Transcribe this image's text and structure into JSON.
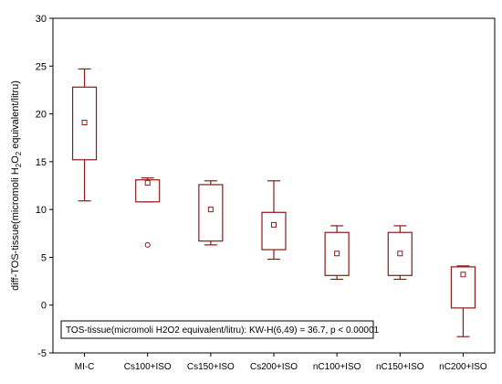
{
  "chart_data": {
    "type": "boxplot",
    "ylabel": "diff-TOS-tissue(micromoli H2O2 equivalent/litru)",
    "ylim": [
      -5,
      30
    ],
    "yticks": [
      -5,
      0,
      5,
      10,
      15,
      20,
      25,
      30
    ],
    "categories": [
      "MI-C",
      "Cs100+ISO",
      "Cs150+ISO",
      "Cs200+ISO",
      "nC100+ISO",
      "nC150+ISO",
      "nC200+ISO"
    ],
    "boxes": [
      {
        "min": 10.9,
        "q1": 15.2,
        "median": 19.1,
        "q3": 22.8,
        "max": 24.7,
        "outliers": []
      },
      {
        "min": 10.8,
        "q1": 10.8,
        "median": 12.8,
        "q3": 13.1,
        "max": 13.3,
        "outliers": [
          6.3
        ]
      },
      {
        "min": 6.3,
        "q1": 6.7,
        "median": 10.0,
        "q3": 12.6,
        "max": 13.0,
        "outliers": []
      },
      {
        "min": 4.8,
        "q1": 5.8,
        "median": 8.4,
        "q3": 9.7,
        "max": 13.0,
        "outliers": []
      },
      {
        "min": 2.7,
        "q1": 3.1,
        "median": 5.4,
        "q3": 7.6,
        "max": 8.3,
        "outliers": []
      },
      {
        "min": 2.7,
        "q1": 3.1,
        "median": 5.4,
        "q3": 7.6,
        "max": 8.3,
        "outliers": []
      },
      {
        "min": -3.3,
        "q1": -0.3,
        "median": 3.2,
        "q3": 4.0,
        "max": 4.1,
        "outliers": []
      }
    ],
    "annotation": "TOS-tissue(micromoli H2O2 equivalent/litru):   KW-H(6,49) = 36.7,  p < 0.00001",
    "grid": false,
    "box_color": "#8b1a1a"
  }
}
